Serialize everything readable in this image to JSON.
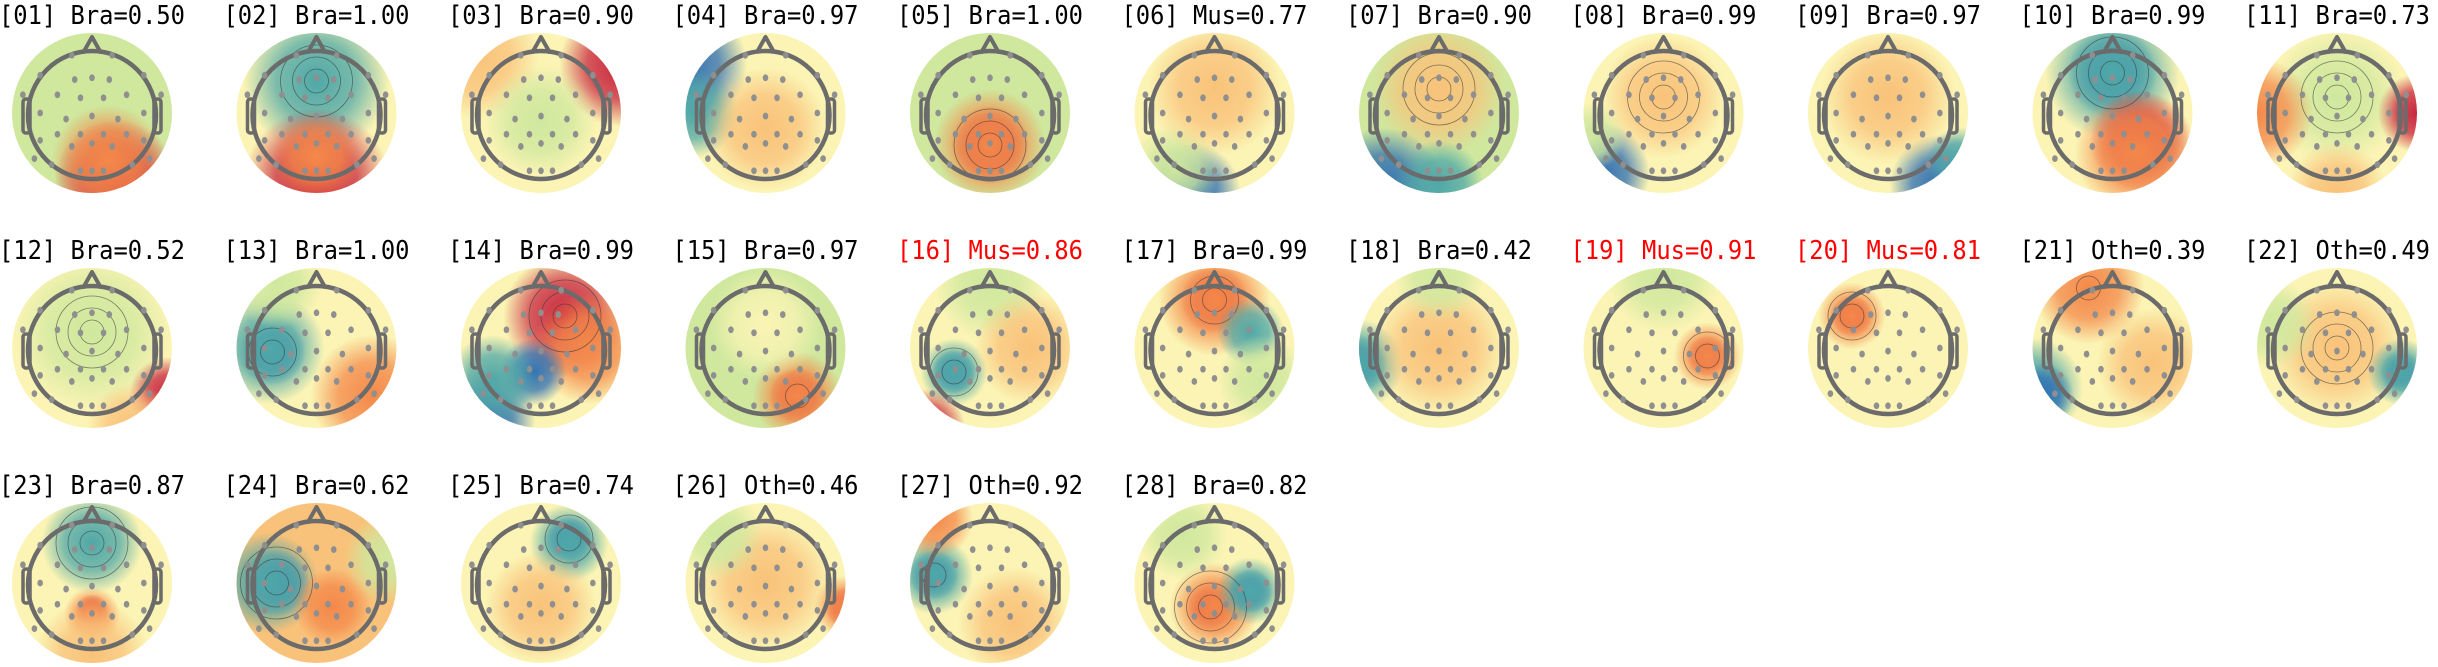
{
  "chart_data": {
    "type": "heatmap",
    "colormap": "spectral (blue-low, yellow-mid, red-high)",
    "grid_columns": 11,
    "highlight_color": "#ff0000",
    "default_title_color": "#000000",
    "components": [
      {
        "title": "[01] Bra=0.50",
        "index": 1,
        "label": "Bra",
        "probability": 0.5,
        "highlight": false
      },
      {
        "title": "[02] Bra=1.00",
        "index": 2,
        "label": "Bra",
        "probability": 1.0,
        "highlight": false
      },
      {
        "title": "[03] Bra=0.90",
        "index": 3,
        "label": "Bra",
        "probability": 0.9,
        "highlight": false
      },
      {
        "title": "[04] Bra=0.97",
        "index": 4,
        "label": "Bra",
        "probability": 0.97,
        "highlight": false
      },
      {
        "title": "[05] Bra=1.00",
        "index": 5,
        "label": "Bra",
        "probability": 1.0,
        "highlight": false
      },
      {
        "title": "[06] Mus=0.77",
        "index": 6,
        "label": "Mus",
        "probability": 0.77,
        "highlight": false
      },
      {
        "title": "[07] Bra=0.90",
        "index": 7,
        "label": "Bra",
        "probability": 0.9,
        "highlight": false
      },
      {
        "title": "[08] Bra=0.99",
        "index": 8,
        "label": "Bra",
        "probability": 0.99,
        "highlight": false
      },
      {
        "title": "[09] Bra=0.97",
        "index": 9,
        "label": "Bra",
        "probability": 0.97,
        "highlight": false
      },
      {
        "title": "[10] Bra=0.99",
        "index": 10,
        "label": "Bra",
        "probability": 0.99,
        "highlight": false
      },
      {
        "title": "[11] Bra=0.73",
        "index": 11,
        "label": "Bra",
        "probability": 0.73,
        "highlight": false
      },
      {
        "title": "[12] Bra=0.52",
        "index": 12,
        "label": "Bra",
        "probability": 0.52,
        "highlight": false
      },
      {
        "title": "[13] Bra=1.00",
        "index": 13,
        "label": "Bra",
        "probability": 1.0,
        "highlight": false
      },
      {
        "title": "[14] Bra=0.99",
        "index": 14,
        "label": "Bra",
        "probability": 0.99,
        "highlight": false
      },
      {
        "title": "[15] Bra=0.97",
        "index": 15,
        "label": "Bra",
        "probability": 0.97,
        "highlight": false
      },
      {
        "title": "[16] Mus=0.86",
        "index": 16,
        "label": "Mus",
        "probability": 0.86,
        "highlight": true
      },
      {
        "title": "[17] Bra=0.99",
        "index": 17,
        "label": "Bra",
        "probability": 0.99,
        "highlight": false
      },
      {
        "title": "[18] Bra=0.42",
        "index": 18,
        "label": "Bra",
        "probability": 0.42,
        "highlight": false
      },
      {
        "title": "[19] Mus=0.91",
        "index": 19,
        "label": "Mus",
        "probability": 0.91,
        "highlight": true
      },
      {
        "title": "[20] Mus=0.81",
        "index": 20,
        "label": "Mus",
        "probability": 0.81,
        "highlight": true
      },
      {
        "title": "[21] Oth=0.39",
        "index": 21,
        "label": "Oth",
        "probability": 0.39,
        "highlight": false
      },
      {
        "title": "[22] Oth=0.49",
        "index": 22,
        "label": "Oth",
        "probability": 0.49,
        "highlight": false
      },
      {
        "title": "[23] Bra=0.87",
        "index": 23,
        "label": "Bra",
        "probability": 0.87,
        "highlight": false
      },
      {
        "title": "[24] Bra=0.62",
        "index": 24,
        "label": "Bra",
        "probability": 0.62,
        "highlight": false
      },
      {
        "title": "[25] Bra=0.74",
        "index": 25,
        "label": "Bra",
        "probability": 0.74,
        "highlight": false
      },
      {
        "title": "[26] Oth=0.46",
        "index": 26,
        "label": "Oth",
        "probability": 0.46,
        "highlight": false
      },
      {
        "title": "[27] Oth=0.92",
        "index": 27,
        "label": "Oth",
        "probability": 0.92,
        "highlight": false
      },
      {
        "title": "[28] Bra=0.82",
        "index": 28,
        "label": "Bra",
        "probability": 0.82,
        "highlight": false
      }
    ]
  }
}
